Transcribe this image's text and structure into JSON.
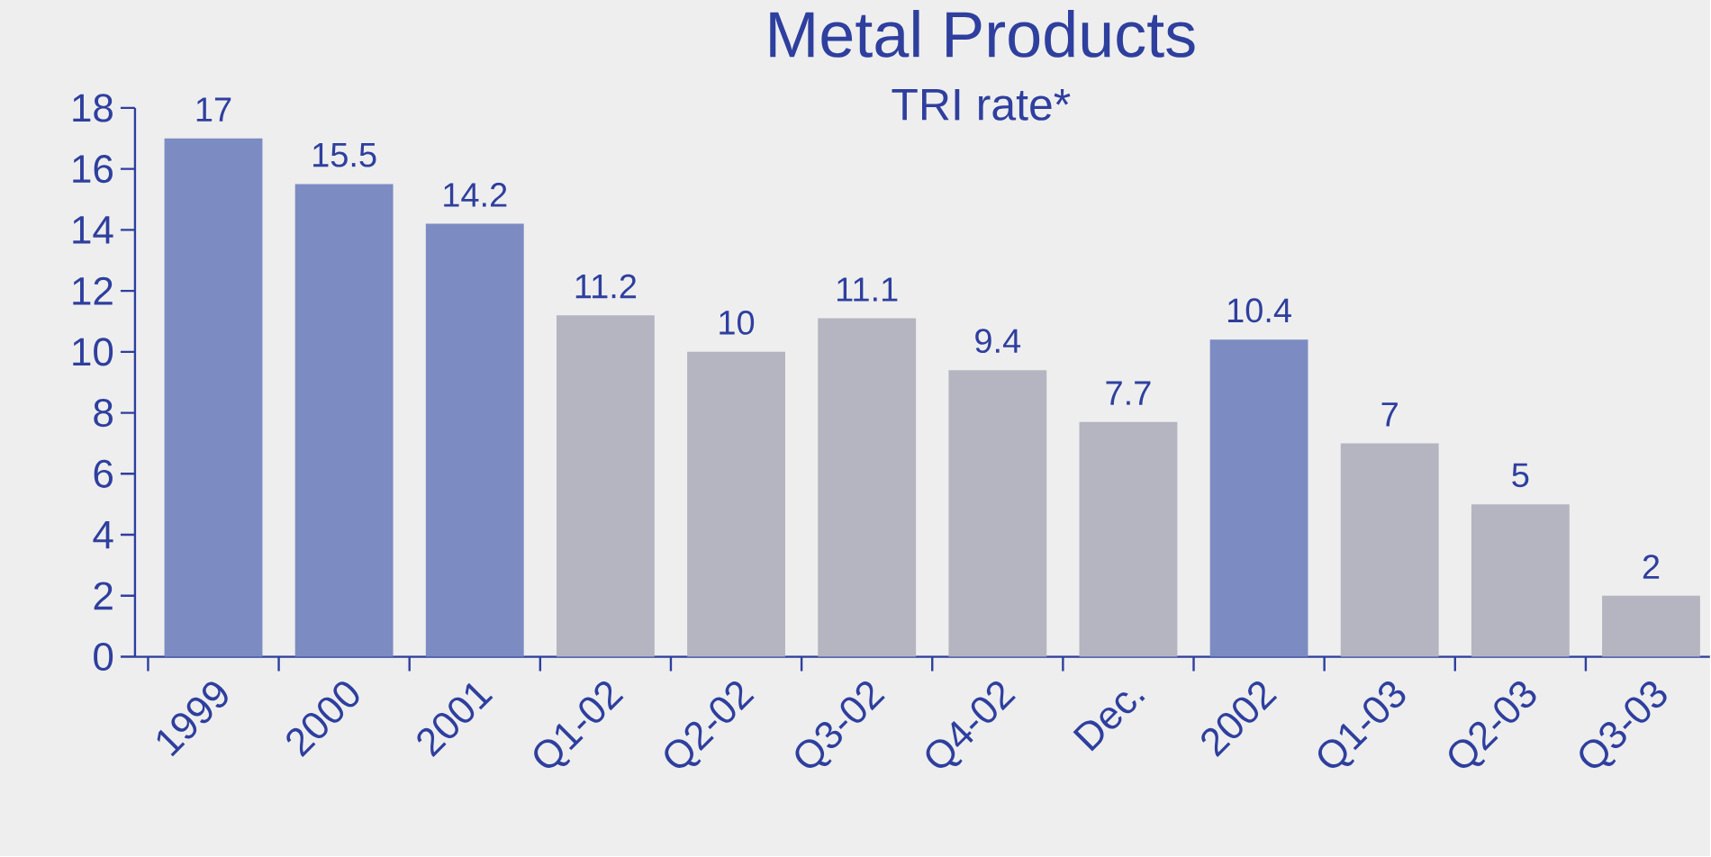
{
  "chart_data": {
    "type": "bar",
    "title": "Metal Products",
    "subtitle": "TRI rate*",
    "categories": [
      "1999",
      "2000",
      "2001",
      "Q1-02",
      "Q2-02",
      "Q3-02",
      "Q4-02",
      "Dec.",
      "2002",
      "Q1-03",
      "Q2-03",
      "Q3-03"
    ],
    "values": [
      17,
      15.5,
      14.2,
      11.2,
      10,
      11.1,
      9.4,
      7.7,
      10.4,
      7,
      5,
      2
    ],
    "colors": [
      "#7c8cc2",
      "#7c8cc2",
      "#7c8cc2",
      "#b4b5c0",
      "#b4b5c0",
      "#b4b5c0",
      "#b4b5c0",
      "#b4b5c0",
      "#7c8cc2",
      "#b4b5c0",
      "#b4b5c0",
      "#b4b5c0"
    ],
    "ylim": [
      0,
      18
    ],
    "yticks": [
      0,
      2,
      4,
      6,
      8,
      10,
      12,
      14,
      16,
      18
    ],
    "data_labels": true,
    "grid": false
  }
}
